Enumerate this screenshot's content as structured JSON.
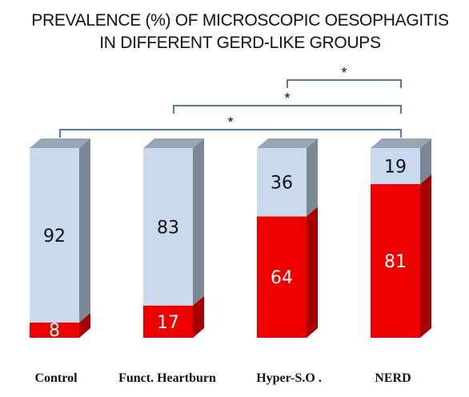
{
  "chart_data": {
    "type": "bar",
    "stacked": true,
    "percent_scale": [
      0,
      100
    ],
    "title_lines": [
      "PREVALENCE  (%) OF MICROSCOPIC  OESOPHAGITIS",
      "IN DIFFERENT  GERD-LIKE GROUPS"
    ],
    "categories": [
      "Control",
      "Funct. Heartburn",
      "Hyper-S.O .",
      "NERD"
    ],
    "series": [
      {
        "values": [
          8,
          17,
          64,
          81
        ],
        "color": "#ee0000"
      },
      {
        "values": [
          92,
          83,
          36,
          19
        ],
        "color": "#c9d9ee"
      }
    ],
    "value_labels": {
      "bottom": [
        "8",
        "17",
        "64",
        "81"
      ],
      "top": [
        "92",
        "83",
        "36",
        "19"
      ]
    },
    "significance": [
      {
        "from": "Hyper-S.O .",
        "to": "NERD",
        "label": "*"
      },
      {
        "from": "Funct. Heartburn",
        "to": "NERD",
        "label": "*"
      },
      {
        "from": "Control",
        "to": "NERD",
        "label": "*"
      }
    ],
    "bracket_color": "#4a7ac0",
    "grid": false,
    "legend": "none"
  }
}
